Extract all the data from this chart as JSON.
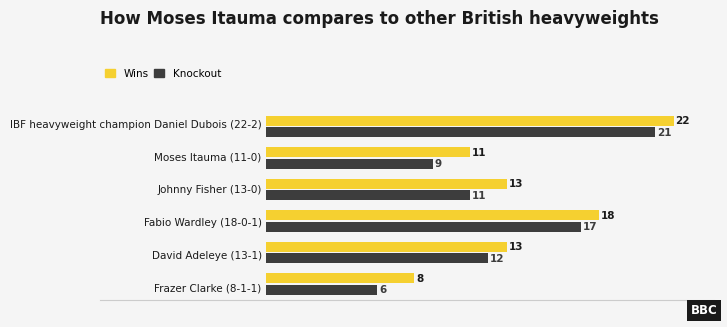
{
  "title": "How Moses Itauma compares to other British heavyweights",
  "legend": [
    "Wins",
    "Knockout"
  ],
  "colors": {
    "wins": "#f5d030",
    "knockout": "#3d3d3d"
  },
  "background_color": "#f5f5f5",
  "fighters": [
    {
      "label": "IBF heavyweight champion Daniel Dubois (22-2)",
      "wins": 22,
      "ko": 21
    },
    {
      "label": "Moses Itauma (11-0)",
      "wins": 11,
      "ko": 9
    },
    {
      "label": "Johnny Fisher (13-0)",
      "wins": 13,
      "ko": 11
    },
    {
      "label": "Fabio Wardley (18-0-1)",
      "wins": 18,
      "ko": 17
    },
    {
      "label": "David Adeleye (13-1)",
      "wins": 13,
      "ko": 12
    },
    {
      "label": "Frazer Clarke (8-1-1)",
      "wins": 8,
      "ko": 6
    }
  ],
  "xlim": [
    0,
    23.5
  ],
  "bar_height": 0.32,
  "label_fontsize": 7.5,
  "title_fontsize": 12,
  "value_fontsize": 7.5,
  "bbc_logo_text": "BBC"
}
